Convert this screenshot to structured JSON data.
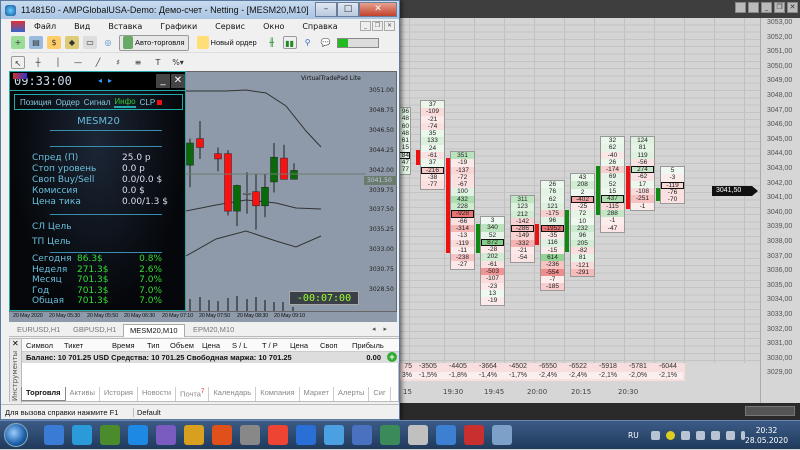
{
  "background_app": {
    "price_axis": [
      "3053,00",
      "3052,00",
      "3051,00",
      "3050,00",
      "3049,00",
      "3048,00",
      "3047,00",
      "3046,00",
      "3045,00",
      "3044,00",
      "3043,00",
      "3042,00",
      "3041,00",
      "3040,00",
      "3039,00",
      "3038,00",
      "3037,00",
      "3036,00",
      "3035,00",
      "3034,00",
      "3033,00",
      "3032,00",
      "3031,00",
      "3030,00",
      "3029,00"
    ],
    "current_price": "3041,50",
    "footprint": [
      {
        "values": [
          "96",
          "48",
          "60",
          "48",
          "61",
          "15",
          "84",
          "47",
          "77"
        ],
        "boxed": 6
      },
      {
        "values": [
          "37",
          "-109",
          "-21",
          "-74",
          "35",
          "133",
          "24",
          "-61",
          "37",
          "-216",
          "-38",
          "-77"
        ],
        "boxed": 9
      },
      {
        "values": [
          "351",
          "-19",
          "-137",
          "-72",
          "-67",
          "100",
          "432",
          "228",
          "-928",
          "-66",
          "-314",
          "-13",
          "-119",
          "-11",
          "-238",
          "-27"
        ],
        "boxed": 8
      },
      {
        "values": [
          "3",
          "340",
          "52",
          "872",
          "-28",
          "202",
          "-61",
          "-503",
          "-107",
          "-23",
          "13",
          "-19"
        ],
        "boxed": 3
      },
      {
        "values": [
          "311",
          "123",
          "212",
          "-142",
          "-286",
          "-149",
          "-332",
          "-21",
          "-54"
        ],
        "boxed": 4
      },
      {
        "values": [
          "26",
          "76",
          "62",
          "121",
          "-175",
          "96",
          "-1952",
          "-35",
          "116",
          "-15",
          "614",
          "-236",
          "-554",
          "-7",
          "-185"
        ],
        "boxed": 6
      },
      {
        "values": [
          "43",
          "208",
          "2",
          "-402",
          "-25",
          "72",
          "10",
          "232",
          "96",
          "205",
          "-82",
          "81",
          "-121",
          "-291"
        ],
        "boxed": 3
      },
      {
        "values": [
          "32",
          "62",
          "-40",
          "26",
          "-174",
          "69",
          "52",
          "15",
          "437",
          "-115",
          "288",
          "-1",
          "-47"
        ],
        "boxed": 8
      },
      {
        "values": [
          "124",
          "81",
          "119",
          "-56",
          "274",
          "-62",
          "17",
          "-108",
          "-251",
          "-1"
        ],
        "boxed": 4
      },
      {
        "values": [
          "5",
          "-3",
          "-119",
          "-76",
          "-70"
        ],
        "boxed": 2
      }
    ],
    "delta": [
      "75",
      "-3505",
      "-4405",
      "-3664",
      "-4502",
      "-6550",
      "-6522",
      "-5918",
      "-5781",
      "-6044"
    ],
    "delta_pct": [
      "3%",
      "-1,5%",
      "-1,8%",
      "-1,4%",
      "-1,7%",
      "-2,4%",
      "-2,4%",
      "-2,1%",
      "-2,0%",
      "-2,1%"
    ],
    "time_axis": [
      "15",
      "19:30",
      "19:45",
      "20:00",
      "20:15",
      "20:30"
    ],
    "colors": {
      "positive": "#3cb043",
      "negative": "#e02020",
      "bar_up": "#118811",
      "bar_down": "#ee1111"
    }
  },
  "window": {
    "title": "1148150 - AMPGlobalUSA-Demo: Демо-счет - Netting - [MESM20,M10]",
    "menu": [
      "Файл",
      "Вид",
      "Вставка",
      "Графики",
      "Сервис",
      "Окно",
      "Справка"
    ],
    "toolbar": {
      "autotrade": "Авто-торговля",
      "new_order": "Новый ордер"
    },
    "vtp": {
      "time": "09:33:00",
      "tabs": [
        "Позиция",
        "Ордер",
        "Сигнал",
        "Инфо",
        "CLP"
      ],
      "active_tab": "Инфо",
      "symbol": "MESM20",
      "info": [
        {
          "label": "Спред (П)",
          "value": "25.0 p"
        },
        {
          "label": "Стоп уровень",
          "value": "0.0 p"
        },
        {
          "label": "Своп Buy/Sell",
          "value": "0.0/0.0 $"
        },
        {
          "label": "Комиссия",
          "value": "0.0 $"
        },
        {
          "label": "Цена тика",
          "value": "0.00/1.3 $"
        }
      ],
      "sl_target": "СЛ Цель",
      "tp_target": "ТП Цель",
      "profits": [
        {
          "label": "Сегодня",
          "amount": "86.3$",
          "pct": "0.8%"
        },
        {
          "label": "Неделя",
          "amount": "271.3$",
          "pct": "2.6%"
        },
        {
          "label": "Месяц",
          "amount": "701.3$",
          "pct": "7.0%"
        },
        {
          "label": "Год",
          "amount": "701.3$",
          "pct": "7.0%"
        },
        {
          "label": "Общая",
          "amount": "701.3$",
          "pct": "7.0%"
        }
      ]
    },
    "chart": {
      "label": "VirtualTradePad  Lite",
      "price_axis": [
        "3051.00",
        "3048.75",
        "3046.50",
        "3044.25",
        "3042.00",
        "3039.75",
        "3037.50",
        "3035.25",
        "3033.00",
        "3030.75",
        "3028.50"
      ],
      "current_price": "3041.50",
      "timer": "-00:07:00",
      "date_axis": [
        "20 May 2020",
        "20 May 05:30",
        "20 May 05:50",
        "20 May 06:30",
        "20 May 07:10",
        "20 May 07:50",
        "20 May 08:30",
        "20 May 09:10"
      ],
      "candles": [
        {
          "o": 3042.5,
          "h": 3045.5,
          "l": 3040.0,
          "c": 3045.0
        },
        {
          "o": 3045.5,
          "h": 3047.5,
          "l": 3043.2,
          "c": 3044.5
        },
        {
          "o": 3043.8,
          "h": 3044.5,
          "l": 3041.8,
          "c": 3043.2
        },
        {
          "o": 3043.8,
          "h": 3044.2,
          "l": 3036.8,
          "c": 3037.3
        },
        {
          "o": 3037.3,
          "h": 3040.3,
          "l": 3035.6,
          "c": 3040.2
        },
        {
          "o": 3039.3,
          "h": 3041.7,
          "l": 3037.0,
          "c": 3039.3
        },
        {
          "o": 3039.5,
          "h": 3041.5,
          "l": 3035.2,
          "c": 3037.9
        },
        {
          "o": 3037.9,
          "h": 3041.5,
          "l": 3036.6,
          "c": 3040.0
        },
        {
          "o": 3040.6,
          "h": 3045.0,
          "l": 3039.4,
          "c": 3043.4
        },
        {
          "o": 3043.3,
          "h": 3044.8,
          "l": 3040.9,
          "c": 3040.9
        },
        {
          "o": 3040.9,
          "h": 3042.7,
          "l": 3040.9,
          "c": 3041.9
        }
      ]
    },
    "chart_tabs": [
      "EURUSD,H1",
      "GBPUSD,H1",
      "MESM20,M10",
      "EPM20,M10"
    ],
    "active_chart_tab": "MESM20,M10",
    "terminal": {
      "side_label": "Инструменты",
      "columns": [
        "Символ",
        "Тикет",
        "Время",
        "Тип",
        "Объем",
        "Цена",
        "S / L",
        "T / P",
        "Цена",
        "Своп",
        "Прибыль"
      ],
      "balance_text": "Баланс: 10 701.25 USD  Средства: 10 701.25  Свободная маржа: 10 701.25",
      "balance_profit": "0.00",
      "tabs": [
        "Торговля",
        "Активы",
        "История",
        "Новости",
        "Почта",
        "Календарь",
        "Компания",
        "Маркет",
        "Алерты",
        "Сиг"
      ],
      "mail_badge": "7"
    },
    "status": {
      "help": "Для вызова справки нажмите F1",
      "profile": "Default"
    }
  },
  "taskbar": {
    "language": "RU",
    "time": "20:32",
    "date": "28.05.2020"
  }
}
